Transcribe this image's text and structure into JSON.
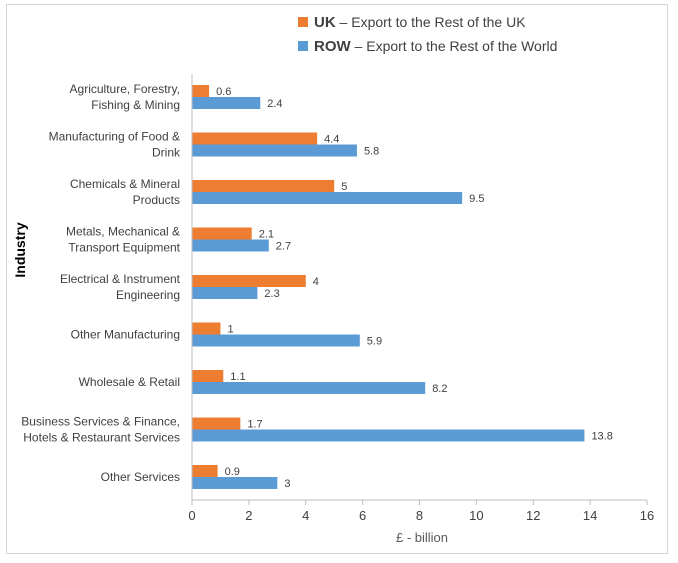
{
  "chart_data": {
    "type": "bar",
    "orientation": "horizontal",
    "ylabel": "Industry",
    "xlabel": "£ - billion",
    "xlim": [
      0,
      16
    ],
    "xticks": [
      "0",
      "2",
      "4",
      "6",
      "8",
      "10",
      "12",
      "14",
      "16"
    ],
    "grid": false,
    "legend_position": "top",
    "categories": [
      [
        "Agriculture, Forestry,",
        "Fishing & Mining"
      ],
      [
        "Manufacturing of Food &",
        "Drink"
      ],
      [
        "Chemicals & Mineral",
        "Products"
      ],
      [
        "Metals, Mechanical &",
        "Transport Equipment"
      ],
      [
        "Electrical & Instrument",
        "Engineering"
      ],
      [
        "Other Manufacturing"
      ],
      [
        "Wholesale & Retail"
      ],
      [
        "Business Services & Finance,",
        "Hotels & Restaurant Services"
      ],
      [
        "Other Services"
      ]
    ],
    "series": [
      {
        "key": "UK",
        "name": "Export to the Rest of the UK",
        "color": "#ED7D31",
        "values": [
          0.6,
          4.4,
          5,
          2.1,
          4,
          1,
          1.1,
          1.7,
          0.9
        ],
        "labels": [
          "0.6",
          "4.4",
          "5",
          "2.1",
          "4",
          "1",
          "1.1",
          "1.7",
          "0.9"
        ]
      },
      {
        "key": "ROW",
        "name": "Export to the Rest of the World",
        "color": "#5B9BD5",
        "values": [
          2.4,
          5.8,
          9.5,
          2.7,
          2.3,
          5.9,
          8.2,
          13.8,
          3
        ],
        "labels": [
          "2.4",
          "5.8",
          "9.5",
          "2.7",
          "2.3",
          "5.9",
          "8.2",
          "13.8",
          "3"
        ]
      }
    ],
    "legend_separator": " – "
  }
}
